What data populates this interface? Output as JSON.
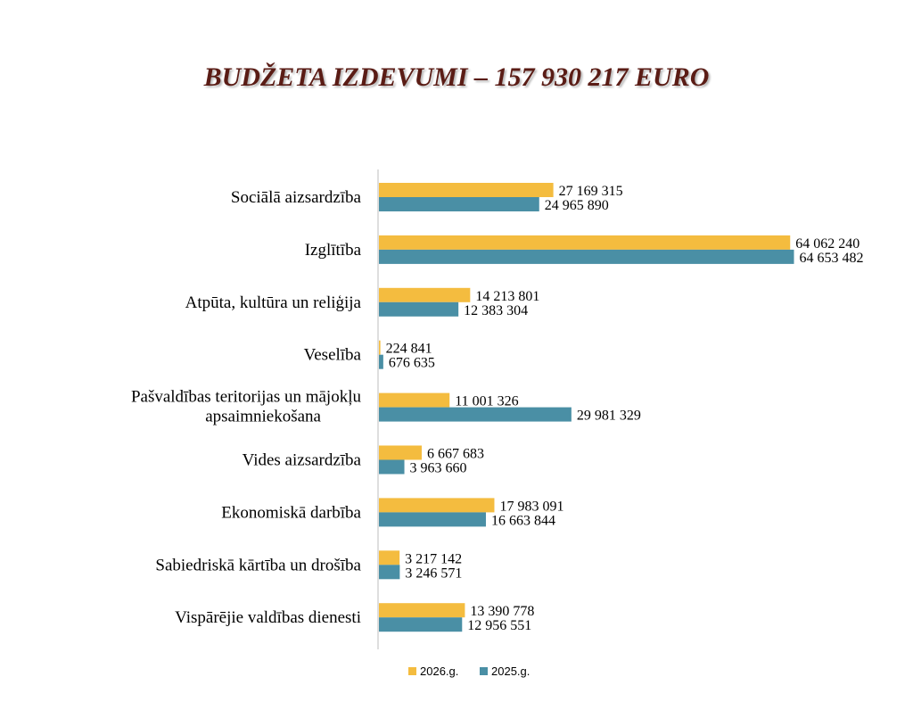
{
  "chart_data": {
    "type": "bar",
    "orientation": "horizontal",
    "title": "BUDŽETA IZDEVUMI – 157 930 217 EURO",
    "categories": [
      [
        "Sociālā aizsardzība"
      ],
      [
        "Izglītība"
      ],
      [
        "Atpūta, kultūra un reliģija"
      ],
      [
        "Veselība"
      ],
      [
        "Pašvaldības teritorijas un mājokļu",
        "apsaimniekošana"
      ],
      [
        "Vides aizsardzība"
      ],
      [
        "Ekonomiskā darbība"
      ],
      [
        "Sabiedriskā kārtība un drošība"
      ],
      [
        "Vispārējie valdības dienesti"
      ]
    ],
    "series": [
      {
        "name": "2026.g.",
        "color": "#f4bc3f",
        "values": [
          27169315,
          64062240,
          14213801,
          224841,
          11001326,
          6667683,
          17983091,
          3217142,
          13390778
        ],
        "labels": [
          "27 169 315",
          "64 062 240",
          "14 213 801",
          "224 841",
          "11 001 326",
          "6 667 683",
          "17 983 091",
          "3 217 142",
          "13 390 778"
        ]
      },
      {
        "name": "2025.g.",
        "color": "#4a8fa5",
        "values": [
          24965890,
          64653482,
          12383304,
          676635,
          29981329,
          3963660,
          16663844,
          3246571,
          12956551
        ],
        "labels": [
          "24 965 890",
          "64 653 482",
          "12 383 304",
          "676 635",
          "29 981 329",
          "3 963 660",
          "16 663 844",
          "3 246 571",
          "12 956 551"
        ]
      }
    ],
    "xlim": [
      0,
      65000000
    ],
    "grid": false,
    "legend": "bottom-center",
    "data_labels": true
  }
}
